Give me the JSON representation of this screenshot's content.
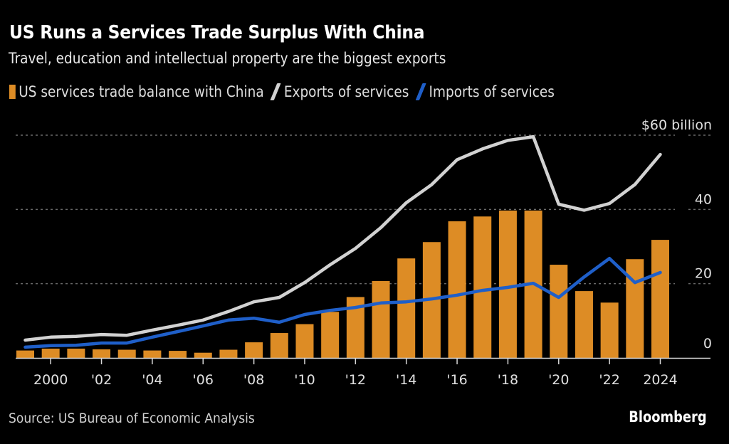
{
  "header": {
    "title": "US Runs a Services Trade Surplus With China",
    "subtitle": "Travel, education and intellectual property are the biggest exports"
  },
  "legend": [
    {
      "label": "US services trade balance with China",
      "kind": "bar",
      "color": "#dd8c25"
    },
    {
      "label": "Exports of services",
      "kind": "line",
      "color": "#d2d2d2"
    },
    {
      "label": "Imports of services",
      "kind": "line",
      "color": "#1f5fc9"
    }
  ],
  "footer": {
    "source": "Source: US Bureau of Economic Analysis",
    "brand": "Bloomberg"
  },
  "chart_data": {
    "type": "bar",
    "title": "US Runs a Services Trade Surplus With China",
    "subtitle": "Travel, education and intellectual property are the biggest exports",
    "xlabel": "",
    "ylabel": "$ billion",
    "ylim": [
      0,
      60
    ],
    "yticks": [
      0,
      20,
      40,
      60
    ],
    "ytick_labels": [
      "0",
      "20",
      "40",
      "$60 billion"
    ],
    "grid": true,
    "legend_position": "top-left",
    "x": [
      1999,
      2000,
      2001,
      2002,
      2003,
      2004,
      2005,
      2006,
      2007,
      2008,
      2009,
      2010,
      2011,
      2012,
      2013,
      2014,
      2015,
      2016,
      2017,
      2018,
      2019,
      2020,
      2021,
      2022,
      2023,
      2024
    ],
    "xticks": [
      2000,
      2002,
      2004,
      2006,
      2008,
      2010,
      2012,
      2014,
      2016,
      2018,
      2020,
      2022,
      2024
    ],
    "xtick_labels": [
      "2000",
      "'02",
      "'04",
      "'06",
      "'08",
      "'10",
      "'12",
      "'14",
      "'16",
      "'18",
      "'20",
      "'22",
      "2024"
    ],
    "series": [
      {
        "name": "US services trade balance with China",
        "type": "bar",
        "color": "#dd8c25",
        "values": [
          2.0,
          2.5,
          2.5,
          2.3,
          2.2,
          2.0,
          1.9,
          1.4,
          2.2,
          4.2,
          6.7,
          9.1,
          12.4,
          16.4,
          20.7,
          26.8,
          31.2,
          36.8,
          38.1,
          39.7,
          39.7,
          25.1,
          18.0,
          14.9,
          26.6,
          31.8
        ]
      },
      {
        "name": "Exports of services",
        "type": "line",
        "color": "#d2d2d2",
        "values": [
          4.8,
          5.6,
          5.8,
          6.3,
          6.1,
          7.5,
          8.8,
          10.2,
          12.5,
          15.1,
          16.3,
          20.3,
          25.1,
          29.5,
          35.1,
          41.8,
          46.7,
          53.4,
          56.3,
          58.6,
          59.6,
          41.4,
          39.8,
          41.6,
          46.7,
          54.8
        ]
      },
      {
        "name": "Imports of services",
        "type": "line",
        "color": "#1f5fc9",
        "values": [
          2.9,
          3.3,
          3.4,
          4.0,
          4.0,
          5.6,
          7.1,
          8.6,
          10.2,
          10.7,
          9.6,
          11.7,
          12.8,
          13.6,
          14.8,
          15.1,
          15.9,
          16.9,
          18.2,
          19.0,
          20.1,
          16.3,
          21.8,
          26.8,
          20.3,
          23.0
        ]
      }
    ]
  }
}
